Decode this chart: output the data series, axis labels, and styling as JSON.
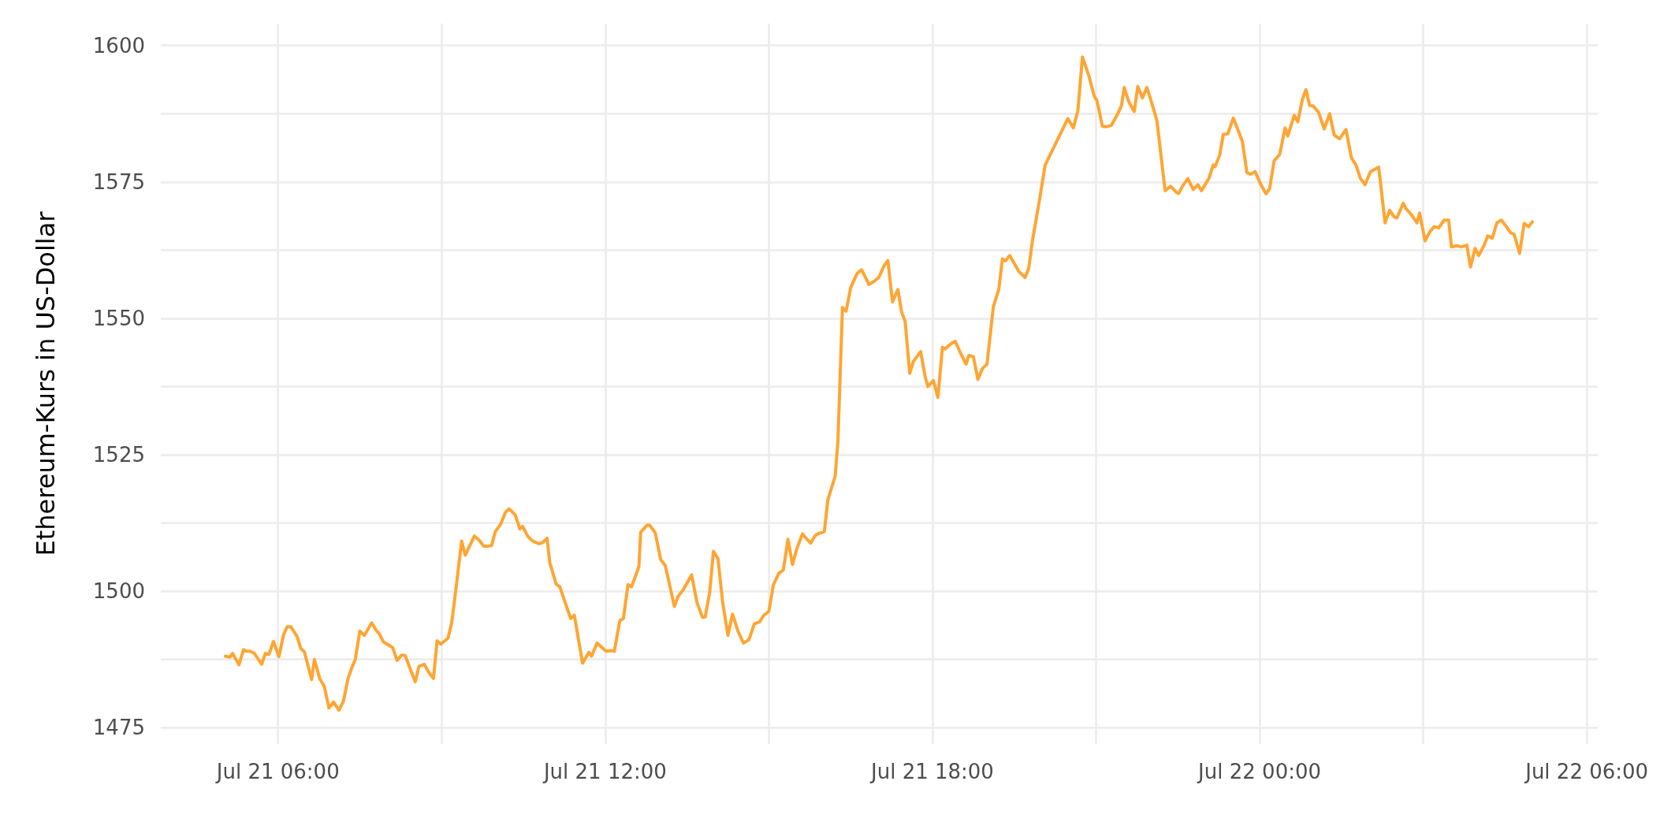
{
  "chart_data": {
    "type": "line",
    "ylabel": "Ethereum-Kurs in US-Dollar",
    "xlim": [
      "--07-21T03:51",
      "--07-22T06:12"
    ],
    "ylim": [
      1472,
      1604
    ],
    "xticks": [
      {
        "value": "--07-21T06:00",
        "label": "Jul 21 06:00"
      },
      {
        "value": "--07-21T09:00",
        "label": null
      },
      {
        "value": "--07-21T12:00",
        "label": "Jul 21 12:00"
      },
      {
        "value": "--07-21T15:00",
        "label": null
      },
      {
        "value": "--07-21T18:00",
        "label": "Jul 21 18:00"
      },
      {
        "value": "--07-21T21:00",
        "label": null
      },
      {
        "value": "--07-22T00:00",
        "label": "Jul 22 00:00"
      },
      {
        "value": "--07-22T03:00",
        "label": null
      },
      {
        "value": "--07-22T06:00",
        "label": "Jul 22 06:00"
      }
    ],
    "yticks": [
      1475,
      {
        "value": 1487.5,
        "label": null
      },
      1500,
      {
        "value": 1512.5,
        "label": null
      },
      1525,
      {
        "value": 1537.5,
        "label": null
      },
      1550,
      {
        "value": 1562.5,
        "label": null
      },
      1575,
      {
        "value": 1587.5,
        "label": null
      },
      1600
    ],
    "grid": true,
    "marker": "none",
    "line_style": "solid",
    "x": [
      "--07-21T05:02",
      "--07-21T05:07",
      "--07-21T05:10",
      "--07-21T05:17",
      "--07-21T05:22",
      "--07-21T05:25",
      "--07-21T05:29",
      "--07-21T05:34",
      "--07-21T05:42",
      "--07-21T05:46",
      "--07-21T05:50",
      "--07-21T05:55",
      "--07-21T06:01",
      "--07-21T06:06",
      "--07-21T06:10",
      "--07-21T06:14",
      "--07-21T06:21",
      "--07-21T06:25",
      "--07-21T06:29",
      "--07-21T06:37",
      "--07-21T06:40",
      "--07-21T06:46",
      "--07-21T06:51",
      "--07-21T06:56",
      "--07-21T07:01",
      "--07-21T07:07",
      "--07-21T07:12",
      "--07-21T07:17",
      "--07-21T07:21",
      "--07-21T07:25",
      "--07-21T07:30",
      "--07-21T07:35",
      "--07-21T07:43",
      "--07-21T07:49",
      "--07-21T07:51",
      "--07-21T07:56",
      "--07-21T08:06",
      "--07-21T08:11",
      "--07-21T08:16",
      "--07-21T08:20",
      "--07-21T08:26",
      "--07-21T08:31",
      "--07-21T08:35",
      "--07-21T08:41",
      "--07-21T08:46",
      "--07-21T08:51",
      "--07-21T08:55",
      "--07-21T08:59",
      "--07-21T09:07",
      "--07-21T09:11",
      "--07-21T09:14",
      "--07-21T09:22",
      "--07-21T09:26",
      "--07-21T09:36",
      "--07-21T09:41",
      "--07-21T09:46",
      "--07-21T09:50",
      "--07-21T09:55",
      "--07-21T09:59",
      "--07-21T10:05",
      "--07-21T10:10",
      "--07-21T10:14",
      "--07-21T10:21",
      "--07-21T10:26",
      "--07-21T10:29",
      "--07-21T10:35",
      "--07-21T10:40",
      "--07-21T10:47",
      "--07-21T10:51",
      "--07-21T10:56",
      "--07-21T10:59",
      "--07-21T11:06",
      "--07-21T11:10",
      "--07-21T11:16",
      "--07-21T11:22",
      "--07-21T11:26",
      "--07-21T11:35",
      "--07-21T11:42",
      "--07-21T11:45",
      "--07-21T11:51",
      "--07-21T12:01",
      "--07-21T12:06",
      "--07-21T12:10",
      "--07-21T12:16",
      "--07-21T12:20",
      "--07-21T12:25",
      "--07-21T12:29",
      "--07-21T12:37",
      "--07-21T12:39",
      "--07-21T12:46",
      "--07-21T12:49",
      "--07-21T12:55",
      "--07-21T13:01",
      "--07-21T13:06",
      "--07-21T13:10",
      "--07-21T13:16",
      "--07-21T13:20",
      "--07-21T13:26",
      "--07-21T13:35",
      "--07-21T13:41",
      "--07-21T13:47",
      "--07-21T13:50",
      "--07-21T13:55",
      "--07-21T13:59",
      "--07-21T14:04",
      "--07-21T14:09",
      "--07-21T14:15",
      "--07-21T14:20",
      "--07-21T14:26",
      "--07-21T14:32",
      "--07-21T14:38",
      "--07-21T14:44",
      "--07-21T14:50",
      "--07-21T14:54",
      "--07-21T15:00",
      "--07-21T15:05",
      "--07-21T15:11",
      "--07-21T15:16",
      "--07-21T15:21",
      "--07-21T15:26",
      "--07-21T15:31",
      "--07-21T15:37",
      "--07-21T15:41",
      "--07-21T15:46",
      "--07-21T15:51",
      "--07-21T15:55",
      "--07-21T16:01",
      "--07-21T16:05",
      "--07-21T16:13",
      "--07-21T16:16",
      "--07-21T16:21",
      "--07-21T16:25",
      "--07-21T16:30",
      "--07-21T16:37",
      "--07-21T16:42",
      "--07-21T16:47",
      "--07-21T16:50",
      "--07-21T16:56",
      "--07-21T17:01",
      "--07-21T17:07",
      "--07-21T17:11",
      "--07-21T17:16",
      "--07-21T17:22",
      "--07-21T17:26",
      "--07-21T17:30",
      "--07-21T17:35",
      "--07-21T17:39",
      "--07-21T17:47",
      "--07-21T17:52",
      "--07-21T17:55",
      "--07-21T18:01",
      "--07-21T18:06",
      "--07-21T18:11",
      "--07-21T18:14",
      "--07-21T18:20",
      "--07-21T18:25",
      "--07-21T18:31",
      "--07-21T18:37",
      "--07-21T18:40",
      "--07-21T18:45",
      "--07-21T18:50",
      "--07-21T18:55",
      "--07-21T19:00",
      "--07-21T19:07",
      "--07-21T19:13",
      "--07-21T19:17",
      "--07-21T19:20",
      "--07-21T19:25",
      "--07-21T19:35",
      "--07-21T19:42",
      "--07-21T19:46",
      "--07-21T19:50",
      "--07-21T19:58",
      "--07-21T20:04",
      "--07-21T20:29",
      "--07-21T20:35",
      "--07-21T20:40",
      "--07-21T20:45",
      "--07-21T20:52",
      "--07-21T20:58",
      "--07-21T21:01",
      "--07-21T21:07",
      "--07-21T21:11",
      "--07-21T21:17",
      "--07-21T21:23",
      "--07-21T21:28",
      "--07-21T21:31",
      "--07-21T21:36",
      "--07-21T21:42",
      "--07-21T21:46",
      "--07-21T21:51",
      "--07-21T21:56",
      "--07-21T22:01",
      "--07-21T22:07",
      "--07-21T22:16",
      "--07-21T22:22",
      "--07-21T22:29",
      "--07-21T22:31",
      "--07-21T22:35",
      "--07-21T22:41",
      "--07-21T22:47",
      "--07-21T22:52",
      "--07-21T22:56",
      "--07-21T23:04",
      "--07-21T23:09",
      "--07-21T23:11",
      "--07-21T23:16",
      "--07-21T23:20",
      "--07-21T23:25",
      "--07-21T23:31",
      "--07-21T23:36",
      "--07-21T23:41",
      "--07-21T23:46",
      "--07-21T23:50",
      "--07-21T23:55",
      "--07-22T00:01",
      "--07-22T00:07",
      "--07-22T00:11",
      "--07-22T00:16",
      "--07-22T00:22",
      "--07-22T00:28",
      "--07-22T00:31",
      "--07-22T00:38",
      "--07-22T00:42",
      "--07-22T00:47",
      "--07-22T00:51",
      "--07-22T00:55",
      "--07-22T00:59",
      "--07-22T01:05",
      "--07-22T01:11",
      "--07-22T01:17",
      "--07-22T01:22",
      "--07-22T01:28",
      "--07-22T01:35",
      "--07-22T01:41",
      "--07-22T01:46",
      "--07-22T01:51",
      "--07-22T01:56",
      "--07-22T02:02",
      "--07-22T02:11",
      "--07-22T02:18",
      "--07-22T02:23",
      "--07-22T02:28",
      "--07-22T02:31",
      "--07-22T02:38",
      "--07-22T02:41",
      "--07-22T02:47",
      "--07-22T02:53",
      "--07-22T02:56",
      "--07-22T03:02",
      "--07-22T03:07",
      "--07-22T03:12",
      "--07-22T03:17",
      "--07-22T03:23",
      "--07-22T03:28",
      "--07-22T03:31",
      "--07-22T03:37",
      "--07-22T03:42",
      "--07-22T03:48",
      "--07-22T03:52",
      "--07-22T03:57",
      "--07-22T04:01",
      "--07-22T04:07",
      "--07-22T04:11",
      "--07-22T04:16",
      "--07-22T04:21",
      "--07-22T04:26",
      "--07-22T04:31",
      "--07-22T04:36",
      "--07-22T04:40",
      "--07-22T04:46",
      "--07-22T04:51",
      "--07-22T04:56",
      "--07-22T05:00"
    ],
    "series": [
      {
        "color": "#ffa533",
        "values": [
          1488.1,
          1487.9,
          1488.6,
          1486.5,
          1489.3,
          1489.0,
          1489.0,
          1488.6,
          1486.6,
          1488.6,
          1488.4,
          1490.8,
          1488.0,
          1492.0,
          1493.5,
          1493.5,
          1491.7,
          1489.5,
          1488.9,
          1483.8,
          1487.5,
          1483.9,
          1482.5,
          1478.6,
          1479.7,
          1478.2,
          1479.9,
          1484.0,
          1485.9,
          1487.5,
          1492.7,
          1491.9,
          1494.2,
          1492.6,
          1492.3,
          1490.7,
          1489.7,
          1487.3,
          1488.3,
          1488.2,
          1485.5,
          1483.4,
          1486.2,
          1486.6,
          1485.1,
          1484.0,
          1490.9,
          1490.3,
          1491.4,
          1494.2,
          1498.0,
          1509.2,
          1506.6,
          1510.1,
          1509.4,
          1508.3,
          1508.2,
          1508.4,
          1510.9,
          1512.3,
          1514.4,
          1515.1,
          1514.0,
          1511.4,
          1511.9,
          1510.0,
          1509.2,
          1508.7,
          1508.9,
          1509.7,
          1505.2,
          1501.3,
          1500.8,
          1497.9,
          1495.0,
          1495.6,
          1486.8,
          1488.8,
          1488.1,
          1490.5,
          1489.0,
          1489.1,
          1489.0,
          1494.6,
          1495.0,
          1501.2,
          1500.8,
          1504.5,
          1510.8,
          1512.1,
          1512.1,
          1510.7,
          1505.8,
          1504.7,
          1501.8,
          1497.2,
          1499.0,
          1500.3,
          1503.0,
          1497.9,
          1495.2,
          1495.3,
          1499.9,
          1507.3,
          1506.0,
          1498.2,
          1491.9,
          1495.8,
          1492.7,
          1490.5,
          1491.1,
          1494.0,
          1494.4,
          1495.5,
          1496.3,
          1501.2,
          1503.3,
          1503.9,
          1509.5,
          1504.9,
          1507.9,
          1510.5,
          1509.7,
          1508.8,
          1510.2,
          1510.6,
          1510.9,
          1516.8,
          1521.1,
          1527.5,
          1552.0,
          1551.3,
          1555.6,
          1558.2,
          1558.9,
          1557.3,
          1556.2,
          1556.8,
          1557.5,
          1559.7,
          1560.6,
          1553.0,
          1555.3,
          1551.2,
          1549.4,
          1539.9,
          1542.1,
          1543.9,
          1539.3,
          1537.5,
          1538.6,
          1535.5,
          1544.7,
          1544.4,
          1545.3,
          1545.8,
          1543.6,
          1541.6,
          1543.2,
          1543.0,
          1538.8,
          1540.8,
          1541.6,
          1552.1,
          1555.3,
          1560.9,
          1560.5,
          1561.5,
          1558.6,
          1557.5,
          1559.2,
          1564.2,
          1571.9,
          1578.1,
          1586.6,
          1584.9,
          1588.0,
          1597.9,
          1594.5,
          1590.7,
          1589.9,
          1585.2,
          1585.1,
          1585.4,
          1587.2,
          1589.0,
          1592.3,
          1589.7,
          1587.9,
          1592.5,
          1590.4,
          1592.3,
          1589.6,
          1586.2,
          1573.4,
          1574.2,
          1573.0,
          1572.9,
          1574.2,
          1575.6,
          1573.6,
          1574.5,
          1573.4,
          1575.6,
          1578.1,
          1577.8,
          1579.9,
          1583.7,
          1583.8,
          1586.7,
          1584.6,
          1582.4,
          1576.7,
          1576.4,
          1576.9,
          1574.6,
          1572.8,
          1573.8,
          1578.9,
          1580.0,
          1584.9,
          1583.4,
          1587.2,
          1586.0,
          1590.1,
          1591.9,
          1589.0,
          1588.9,
          1587.7,
          1584.7,
          1587.5,
          1583.6,
          1582.9,
          1584.6,
          1579.4,
          1578.1,
          1575.6,
          1574.5,
          1576.9,
          1577.7,
          1567.5,
          1569.8,
          1568.6,
          1568.4,
          1571.1,
          1570.1,
          1569.0,
          1567.5,
          1569.3,
          1564.2,
          1565.8,
          1566.8,
          1566.6,
          1568.0,
          1568.0,
          1563.1,
          1563.3,
          1563.1,
          1563.4,
          1559.4,
          1562.8,
          1561.5,
          1563.4,
          1565.1,
          1564.7,
          1567.5,
          1568.0,
          1566.9,
          1565.7,
          1565.4,
          1561.9,
          1567.4,
          1566.8,
          1567.7
        ]
      }
    ]
  }
}
